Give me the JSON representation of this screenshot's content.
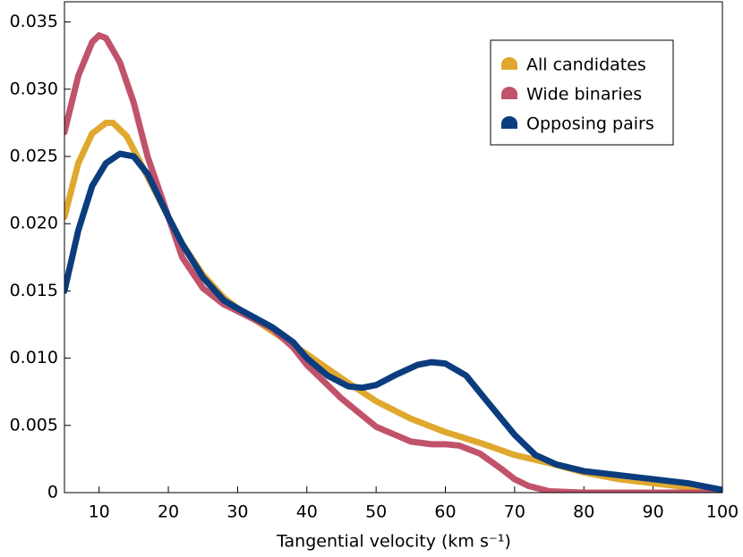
{
  "chart_data": {
    "type": "line",
    "x_label": "Tangential velocity (km s⁻¹)",
    "xlim": [
      5,
      100
    ],
    "xticks": [
      10,
      20,
      30,
      40,
      50,
      60,
      70,
      80,
      90,
      100
    ],
    "ylim": [
      0,
      0.0365
    ],
    "yticks": [
      0,
      0.005,
      {
        "value": 0.01,
        "label": "0.010"
      },
      0.015,
      {
        "value": 0.02,
        "label": "0.020"
      },
      0.025,
      {
        "value": 0.03,
        "label": "0.030"
      },
      0.035
    ],
    "legend": "upper right",
    "series": [
      {
        "name": "All candidates",
        "color": "#e0a82e",
        "x": [
          5,
          7,
          9,
          11,
          12,
          14,
          16,
          18,
          20,
          22,
          25,
          28,
          30,
          35,
          40,
          45,
          50,
          55,
          60,
          65,
          70,
          75,
          80,
          85,
          90,
          95,
          100
        ],
        "values": [
          0.0205,
          0.0245,
          0.0267,
          0.0275,
          0.0275,
          0.0265,
          0.0245,
          0.0225,
          0.0205,
          0.0185,
          0.0162,
          0.0145,
          0.0137,
          0.012,
          0.0103,
          0.0085,
          0.0068,
          0.0055,
          0.0045,
          0.0037,
          0.0028,
          0.0022,
          0.0015,
          0.001,
          0.0007,
          0.0004,
          0.0002
        ]
      },
      {
        "name": "Wide binaries",
        "color": "#c0536a",
        "x": [
          5,
          7,
          9,
          10,
          11,
          13,
          15,
          17,
          20,
          22,
          25,
          28,
          30,
          35,
          38,
          40,
          45,
          50,
          55,
          58,
          60,
          62,
          65,
          68,
          70,
          72,
          75,
          80,
          90,
          100
        ],
        "values": [
          0.0268,
          0.031,
          0.0335,
          0.034,
          0.0338,
          0.032,
          0.029,
          0.025,
          0.0205,
          0.0175,
          0.0152,
          0.014,
          0.0135,
          0.0122,
          0.0108,
          0.0095,
          0.007,
          0.0049,
          0.0038,
          0.0036,
          0.0036,
          0.0035,
          0.0029,
          0.0018,
          0.001,
          0.0005,
          0.0001,
          0,
          0,
          0
        ]
      },
      {
        "name": "Opposing pairs",
        "color": "#0b3d7e",
        "x": [
          5,
          7,
          9,
          11,
          13,
          15,
          17,
          20,
          22,
          25,
          28,
          30,
          35,
          38,
          40,
          43,
          46,
          48,
          50,
          53,
          56,
          58,
          60,
          63,
          66,
          70,
          73,
          76,
          80,
          85,
          90,
          95,
          100
        ],
        "values": [
          0.015,
          0.0195,
          0.0228,
          0.0245,
          0.0252,
          0.025,
          0.0237,
          0.0205,
          0.0185,
          0.016,
          0.0143,
          0.0137,
          0.0123,
          0.0112,
          0.01,
          0.0087,
          0.0079,
          0.0078,
          0.008,
          0.0088,
          0.0095,
          0.0097,
          0.0096,
          0.0087,
          0.0068,
          0.0043,
          0.0028,
          0.0021,
          0.0016,
          0.0013,
          0.001,
          0.0007,
          0.0002
        ]
      }
    ]
  }
}
